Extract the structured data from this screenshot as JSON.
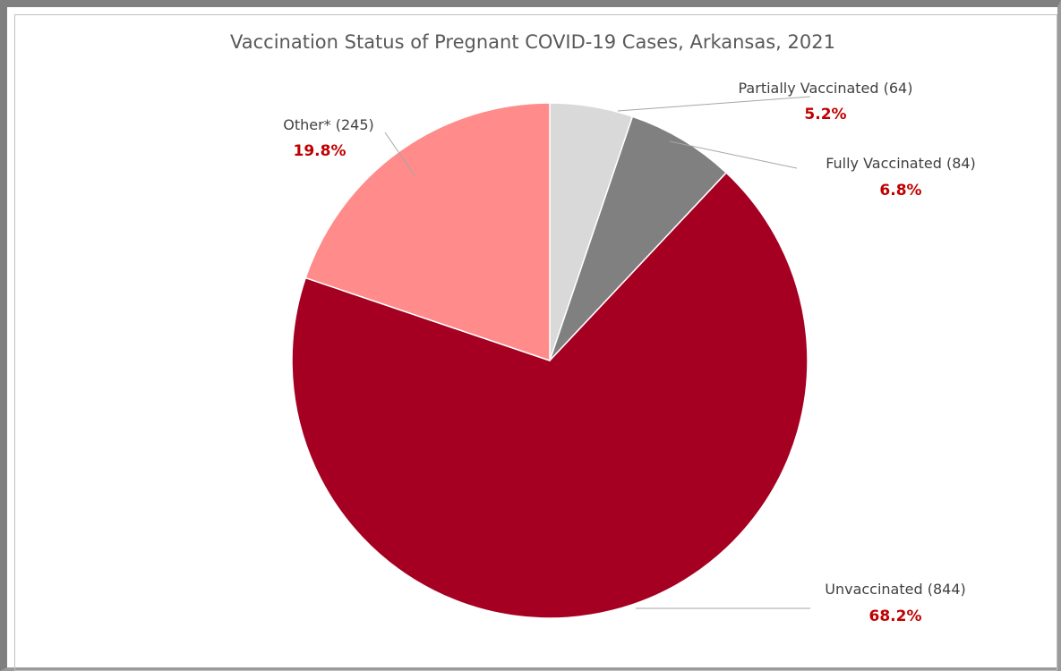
{
  "chart_data": {
    "type": "pie",
    "title": "Vaccination Status of Pregnant COVID-19 Cases, Arkansas, 2021",
    "slices": [
      {
        "label": "Partially Vaccinated (64)",
        "count": 64,
        "percent_label": "5.2%",
        "value": 5.2,
        "color": "#d9d9d9"
      },
      {
        "label": "Fully Vaccinated (84)",
        "count": 84,
        "percent_label": "6.8%",
        "value": 6.8,
        "color": "#808080"
      },
      {
        "label": "Unvaccinated (844)",
        "count": 844,
        "percent_label": "68.2%",
        "value": 68.2,
        "color": "#a50021"
      },
      {
        "label": "Other* (245)",
        "count": 245,
        "percent_label": "19.8%",
        "value": 19.8,
        "color": "#ff8b8b"
      }
    ],
    "start_angle": "12 o'clock",
    "direction": "clockwise",
    "label_color": "#404040",
    "percent_color": "#c00000"
  }
}
